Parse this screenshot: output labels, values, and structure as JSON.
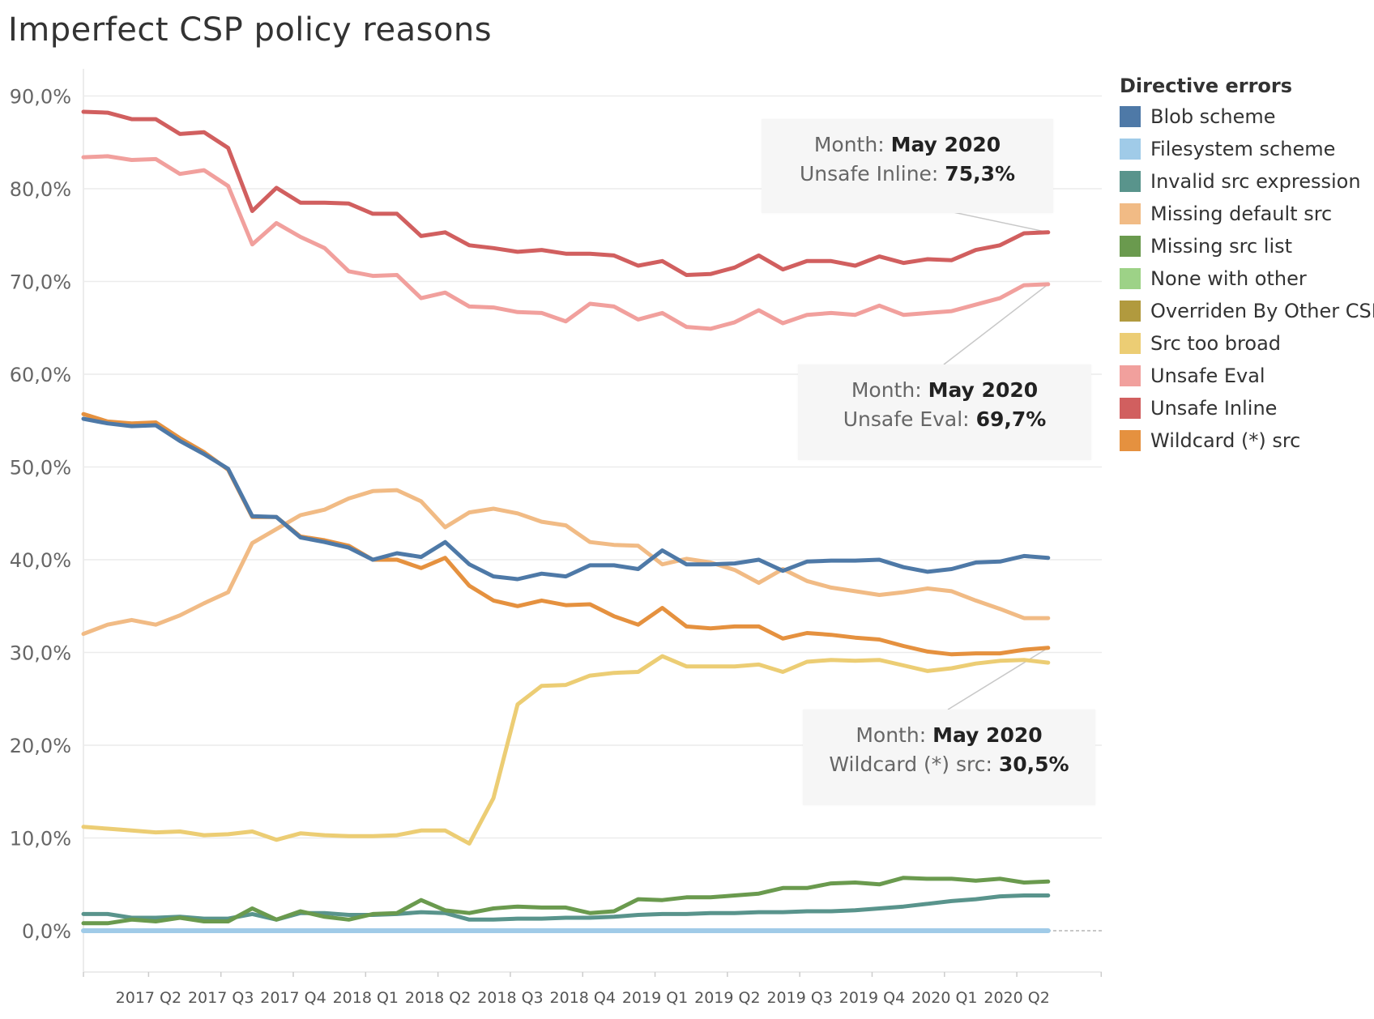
{
  "title": "Imperfect CSP policy reasons",
  "chart_data": {
    "type": "line",
    "title": "Imperfect CSP policy reasons",
    "ylim": [
      -5,
      92
    ],
    "y_ticks": [
      0,
      10,
      20,
      30,
      40,
      50,
      60,
      70,
      80,
      90
    ],
    "y_tick_labels": [
      "0,0%",
      "10,0%",
      "20,0%",
      "30,0%",
      "40,0%",
      "50,0%",
      "60,0%",
      "70,0%",
      "80,0%",
      "90,0%"
    ],
    "x_start": "2017-01",
    "x_range": [
      0,
      42.5
    ],
    "x_tick_labels": [
      "2017 Q2",
      "2017 Q3",
      "2017 Q4",
      "2018 Q1",
      "2018 Q2",
      "2018 Q3",
      "2018 Q4",
      "2019 Q1",
      "2019 Q2",
      "2019 Q3",
      "2019 Q4",
      "2020 Q1",
      "2020 Q2"
    ],
    "x_tick_months": [
      3,
      6,
      9,
      12,
      15,
      18,
      21,
      24,
      27,
      30,
      33,
      36,
      39
    ],
    "grid": true,
    "legend_title": "Directive errors",
    "legend_position": "right",
    "series": [
      {
        "name": "Blob scheme",
        "color": "#4e79a7",
        "values": [
          55.2,
          54.7,
          54.4,
          54.5,
          52.8,
          51.4,
          49.8,
          44.7,
          44.6,
          42.4,
          41.9,
          41.3,
          40.0,
          40.7,
          40.3,
          41.9,
          39.5,
          38.2,
          37.9,
          38.5,
          38.2,
          39.4,
          39.4,
          39.0,
          41.0,
          39.5,
          39.5,
          39.6,
          40.0,
          38.8,
          39.8,
          39.9,
          39.9,
          40.0,
          39.2,
          38.7,
          39.0,
          39.7,
          39.8,
          40.4,
          40.2
        ]
      },
      {
        "name": "Filesystem scheme",
        "color": "#a0cbe8",
        "values": [
          0,
          0,
          0,
          0,
          0,
          0,
          0,
          0,
          0,
          0,
          0,
          0,
          0,
          0,
          0,
          0,
          0,
          0,
          0,
          0,
          0,
          0,
          0,
          0,
          0,
          0,
          0,
          0,
          0,
          0,
          0,
          0,
          0,
          0,
          0,
          0,
          0,
          0,
          0,
          0,
          0
        ]
      },
      {
        "name": "Invalid src expression",
        "color": "#59948c",
        "values": [
          1.8,
          1.8,
          1.4,
          1.4,
          1.5,
          1.3,
          1.3,
          1.8,
          1.2,
          1.9,
          1.9,
          1.7,
          1.7,
          1.8,
          2.0,
          1.9,
          1.2,
          1.2,
          1.3,
          1.3,
          1.4,
          1.4,
          1.5,
          1.7,
          1.8,
          1.8,
          1.9,
          1.9,
          2.0,
          2.0,
          2.1,
          2.1,
          2.2,
          2.4,
          2.6,
          2.9,
          3.2,
          3.4,
          3.7,
          3.8,
          3.8
        ]
      },
      {
        "name": "Missing default src",
        "color": "#f1bb85",
        "values": [
          32.0,
          33.0,
          33.5,
          33.0,
          34.0,
          35.3,
          36.5,
          41.8,
          43.3,
          44.8,
          45.4,
          46.6,
          47.4,
          47.5,
          46.3,
          43.5,
          45.1,
          45.5,
          45.0,
          44.1,
          43.7,
          41.9,
          41.6,
          41.5,
          39.5,
          40.1,
          39.7,
          38.9,
          37.5,
          39.0,
          37.7,
          37.0,
          36.6,
          36.2,
          36.5,
          36.9,
          36.6,
          35.6,
          34.7,
          33.7,
          33.7
        ]
      },
      {
        "name": "Missing src list",
        "color": "#6a9a4e",
        "values": [
          0.8,
          0.8,
          1.2,
          1.0,
          1.4,
          1.0,
          1.0,
          2.4,
          1.2,
          2.1,
          1.5,
          1.2,
          1.8,
          1.9,
          3.3,
          2.2,
          1.9,
          2.4,
          2.6,
          2.5,
          2.5,
          1.9,
          2.1,
          3.4,
          3.3,
          3.6,
          3.6,
          3.8,
          4.0,
          4.6,
          4.6,
          5.1,
          5.2,
          5.0,
          5.7,
          5.6,
          5.6,
          5.4,
          5.6,
          5.2,
          5.3
        ]
      },
      {
        "name": "None with other",
        "color": "#9dd287",
        "values": []
      },
      {
        "name": "Overriden By Other CSP",
        "color": "#b19a3e",
        "values": []
      },
      {
        "name": "Src too broad",
        "color": "#eccd74",
        "values": [
          11.2,
          11.0,
          10.8,
          10.6,
          10.7,
          10.3,
          10.4,
          10.7,
          9.8,
          10.5,
          10.3,
          10.2,
          10.2,
          10.3,
          10.8,
          10.8,
          9.4,
          14.3,
          24.4,
          26.4,
          26.5,
          27.5,
          27.8,
          27.9,
          29.6,
          28.5,
          28.5,
          28.5,
          28.7,
          27.9,
          29.0,
          29.2,
          29.1,
          29.2,
          28.6,
          28.0,
          28.3,
          28.8,
          29.1,
          29.2,
          28.9
        ]
      },
      {
        "name": "Unsafe Eval",
        "color": "#f1a09d",
        "values": [
          83.4,
          83.5,
          83.1,
          83.2,
          81.6,
          82.0,
          80.3,
          74.0,
          76.3,
          74.8,
          73.6,
          71.1,
          70.6,
          70.7,
          68.2,
          68.8,
          67.3,
          67.2,
          66.7,
          66.6,
          65.7,
          67.6,
          67.3,
          65.9,
          66.6,
          65.1,
          64.9,
          65.6,
          66.9,
          65.5,
          66.4,
          66.6,
          66.4,
          67.4,
          66.4,
          66.6,
          66.8,
          67.5,
          68.2,
          69.6,
          69.7
        ]
      },
      {
        "name": "Unsafe Inline",
        "color": "#d15f5f",
        "values": [
          88.3,
          88.2,
          87.5,
          87.5,
          85.9,
          86.1,
          84.4,
          77.6,
          80.1,
          78.5,
          78.5,
          78.4,
          77.3,
          77.3,
          74.9,
          75.3,
          73.9,
          73.6,
          73.2,
          73.4,
          73.0,
          73.0,
          72.8,
          71.7,
          72.2,
          70.7,
          70.8,
          71.5,
          72.8,
          71.3,
          72.2,
          72.2,
          71.7,
          72.7,
          72.0,
          72.4,
          72.3,
          73.4,
          73.9,
          75.2,
          75.3
        ]
      },
      {
        "name": "Wildcard (*) src",
        "color": "#e5913f",
        "values": [
          55.7,
          54.9,
          54.7,
          54.8,
          53.1,
          51.6,
          49.7,
          44.6,
          44.6,
          42.5,
          42.1,
          41.5,
          40.0,
          40.0,
          39.1,
          40.2,
          37.2,
          35.6,
          35.0,
          35.6,
          35.1,
          35.2,
          33.9,
          33.0,
          34.8,
          32.8,
          32.6,
          32.8,
          32.8,
          31.5,
          32.1,
          31.9,
          31.6,
          31.4,
          30.7,
          30.1,
          29.8,
          29.9,
          29.9,
          30.3,
          30.5
        ]
      }
    ],
    "tooltips": [
      {
        "id": "tip-inline",
        "month_label": "Month:",
        "month": "May 2020",
        "series_label": "Unsafe Inline:",
        "value": "75,3%",
        "series": "Unsafe Inline"
      },
      {
        "id": "tip-eval",
        "month_label": "Month:",
        "month": "May 2020",
        "series_label": "Unsafe Eval:",
        "value": "69,7%",
        "series": "Unsafe Eval"
      },
      {
        "id": "tip-wildcard",
        "month_label": "Month:",
        "month": "May 2020",
        "series_label": "Wildcard (*) src:",
        "value": "30,5%",
        "series": "Wildcard (*) src"
      }
    ]
  }
}
